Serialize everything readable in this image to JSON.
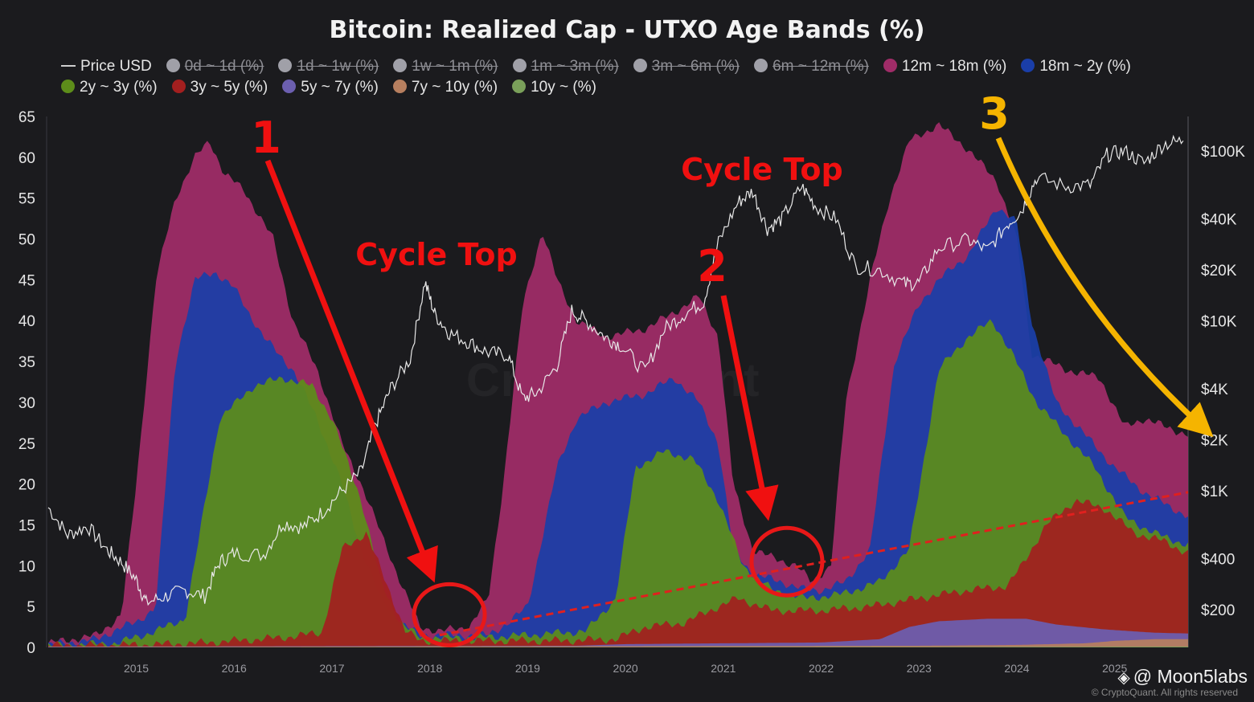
{
  "chart_data": {
    "type": "area",
    "title": "Bitcoin: Realized Cap - UTXO Age Bands (%)",
    "y_left": {
      "ticks": [
        0,
        5,
        10,
        15,
        20,
        25,
        30,
        35,
        40,
        45,
        50,
        55,
        60,
        65
      ],
      "range": [
        0,
        65
      ]
    },
    "y_right": {
      "scale": "log",
      "ticks": [
        200,
        400,
        1000,
        2000,
        4000,
        10000,
        20000,
        40000,
        100000
      ],
      "tick_labels": [
        "$200",
        "$400",
        "$1K",
        "$2K",
        "$4K",
        "$10K",
        "$20K",
        "$40K",
        "$100K"
      ]
    },
    "x": {
      "range": [
        2014.1,
        2025.75
      ],
      "ticks": [
        2015,
        2016,
        2017,
        2018,
        2019,
        2020,
        2021,
        2022,
        2023,
        2024,
        2025
      ]
    },
    "legend": [
      {
        "name": "Price USD",
        "kind": "line",
        "color": "#cfcfcf",
        "hidden": false
      },
      {
        "name": "0d ~ 1d (%)",
        "color": "#a0a0a8",
        "hidden": true
      },
      {
        "name": "1d ~ 1w (%)",
        "color": "#a0a0a8",
        "hidden": true
      },
      {
        "name": "1w ~ 1m (%)",
        "color": "#a0a0a8",
        "hidden": true
      },
      {
        "name": "1m ~ 3m (%)",
        "color": "#a0a0a8",
        "hidden": true
      },
      {
        "name": "3m ~ 6m (%)",
        "color": "#a0a0a8",
        "hidden": true
      },
      {
        "name": "6m ~ 12m (%)",
        "color": "#a0a0a8",
        "hidden": true
      },
      {
        "name": "12m ~ 18m (%)",
        "color": "#a02c68",
        "hidden": false
      },
      {
        "name": "18m ~ 2y (%)",
        "color": "#1a3ea8",
        "hidden": false
      },
      {
        "name": "2y ~ 3y (%)",
        "color": "#5d8d1a",
        "hidden": false
      },
      {
        "name": "3y ~ 5y (%)",
        "color": "#a31f1f",
        "hidden": false
      },
      {
        "name": "5y ~ 7y (%)",
        "color": "#6c5fb0",
        "hidden": false
      },
      {
        "name": "7y ~ 10y (%)",
        "color": "#b77f5f",
        "hidden": false
      },
      {
        "name": "10y ~ (%)",
        "color": "#7aa05a",
        "hidden": false
      }
    ],
    "stack_totals": [
      {
        "name": "12m ~ 18m (%)",
        "color": "#a02c68",
        "points": [
          [
            2014.1,
            0.5
          ],
          [
            2014.6,
            1.5
          ],
          [
            2014.85,
            4
          ],
          [
            2015.0,
            20
          ],
          [
            2015.2,
            45
          ],
          [
            2015.4,
            55
          ],
          [
            2015.6,
            60
          ],
          [
            2015.75,
            62
          ],
          [
            2015.9,
            58
          ],
          [
            2016.1,
            56
          ],
          [
            2016.4,
            50
          ],
          [
            2016.6,
            40
          ],
          [
            2016.85,
            34
          ],
          [
            2017.1,
            25
          ],
          [
            2017.3,
            20
          ],
          [
            2017.5,
            14
          ],
          [
            2017.7,
            8
          ],
          [
            2017.9,
            2.5
          ],
          [
            2018.1,
            2
          ],
          [
            2018.4,
            2.5
          ],
          [
            2018.6,
            6
          ],
          [
            2018.75,
            20
          ],
          [
            2018.95,
            42
          ],
          [
            2019.15,
            51
          ],
          [
            2019.3,
            45
          ],
          [
            2019.5,
            40
          ],
          [
            2019.8,
            38
          ],
          [
            2020.2,
            39
          ],
          [
            2020.5,
            41
          ],
          [
            2020.75,
            43
          ],
          [
            2020.95,
            38
          ],
          [
            2021.1,
            20
          ],
          [
            2021.3,
            12
          ],
          [
            2021.5,
            11
          ],
          [
            2021.75,
            10
          ],
          [
            2021.9,
            8
          ],
          [
            2022.1,
            10
          ],
          [
            2022.25,
            30
          ],
          [
            2022.5,
            45
          ],
          [
            2022.7,
            55
          ],
          [
            2022.9,
            62
          ],
          [
            2023.2,
            64
          ],
          [
            2023.5,
            61
          ],
          [
            2023.8,
            57
          ],
          [
            2024.0,
            50
          ],
          [
            2024.15,
            36
          ],
          [
            2024.5,
            34
          ],
          [
            2024.85,
            33
          ],
          [
            2025.1,
            27
          ],
          [
            2025.3,
            28
          ],
          [
            2025.75,
            26
          ]
        ]
      },
      {
        "name": "18m ~ 2y (%)",
        "color": "#1a3ea8",
        "points": [
          [
            2014.1,
            0.3
          ],
          [
            2014.6,
            1
          ],
          [
            2014.85,
            2.5
          ],
          [
            2015.0,
            3
          ],
          [
            2015.2,
            5
          ],
          [
            2015.4,
            35
          ],
          [
            2015.6,
            45
          ],
          [
            2015.8,
            46
          ],
          [
            2016.0,
            44
          ],
          [
            2016.3,
            38
          ],
          [
            2016.6,
            34
          ],
          [
            2016.85,
            28
          ],
          [
            2017.1,
            20
          ],
          [
            2017.3,
            12
          ],
          [
            2017.5,
            6
          ],
          [
            2017.7,
            3
          ],
          [
            2017.9,
            1.5
          ],
          [
            2018.1,
            1.5
          ],
          [
            2018.6,
            1.5
          ],
          [
            2018.8,
            3
          ],
          [
            2019.0,
            5
          ],
          [
            2019.3,
            22
          ],
          [
            2019.5,
            28
          ],
          [
            2019.8,
            30
          ],
          [
            2020.2,
            31
          ],
          [
            2020.5,
            33
          ],
          [
            2020.75,
            30
          ],
          [
            2020.95,
            25
          ],
          [
            2021.1,
            12
          ],
          [
            2021.3,
            9
          ],
          [
            2021.6,
            8
          ],
          [
            2021.85,
            7
          ],
          [
            2022.0,
            7
          ],
          [
            2022.25,
            8
          ],
          [
            2022.5,
            12
          ],
          [
            2022.75,
            35
          ],
          [
            2023.0,
            42
          ],
          [
            2023.2,
            45
          ],
          [
            2023.5,
            48
          ],
          [
            2023.8,
            54
          ],
          [
            2024.0,
            52
          ],
          [
            2024.15,
            40
          ],
          [
            2024.4,
            30
          ],
          [
            2024.7,
            26
          ],
          [
            2025.0,
            22
          ],
          [
            2025.3,
            19
          ],
          [
            2025.75,
            16
          ]
        ]
      },
      {
        "name": "2y ~ 3y (%)",
        "color": "#5d8d1a",
        "points": [
          [
            2014.1,
            0.2
          ],
          [
            2014.8,
            0.5
          ],
          [
            2015.2,
            2
          ],
          [
            2015.5,
            3.5
          ],
          [
            2015.85,
            28
          ],
          [
            2016.2,
            32
          ],
          [
            2016.5,
            33
          ],
          [
            2016.8,
            32
          ],
          [
            2017.0,
            28
          ],
          [
            2017.3,
            18
          ],
          [
            2017.5,
            8
          ],
          [
            2017.7,
            3
          ],
          [
            2017.9,
            1.2
          ],
          [
            2018.5,
            1.2
          ],
          [
            2019.0,
            1.5
          ],
          [
            2019.6,
            2
          ],
          [
            2019.9,
            6
          ],
          [
            2020.1,
            22
          ],
          [
            2020.4,
            24
          ],
          [
            2020.7,
            23
          ],
          [
            2020.95,
            18
          ],
          [
            2021.2,
            10
          ],
          [
            2021.5,
            7
          ],
          [
            2021.85,
            6
          ],
          [
            2022.2,
            6.5
          ],
          [
            2022.6,
            8
          ],
          [
            2022.9,
            12
          ],
          [
            2023.2,
            34
          ],
          [
            2023.5,
            38
          ],
          [
            2023.75,
            40
          ],
          [
            2023.95,
            36
          ],
          [
            2024.2,
            30
          ],
          [
            2024.5,
            26
          ],
          [
            2024.8,
            22
          ],
          [
            2025.1,
            16
          ],
          [
            2025.4,
            14
          ],
          [
            2025.75,
            12.5
          ]
        ]
      },
      {
        "name": "3y ~ 5y (%)",
        "color": "#a31f1f",
        "points": [
          [
            2014.1,
            0.2
          ],
          [
            2015.0,
            0.3
          ],
          [
            2015.6,
            0.5
          ],
          [
            2016.0,
            0.8
          ],
          [
            2016.5,
            1.2
          ],
          [
            2016.9,
            1.8
          ],
          [
            2017.1,
            12
          ],
          [
            2017.35,
            14
          ],
          [
            2017.55,
            8
          ],
          [
            2017.75,
            2
          ],
          [
            2017.9,
            0.8
          ],
          [
            2018.5,
            0.8
          ],
          [
            2019.3,
            0.8
          ],
          [
            2019.9,
            1
          ],
          [
            2020.2,
            2.5
          ],
          [
            2020.6,
            3
          ],
          [
            2020.95,
            5
          ],
          [
            2021.15,
            6
          ],
          [
            2021.5,
            4.5
          ],
          [
            2022.0,
            4.5
          ],
          [
            2022.5,
            5
          ],
          [
            2023.0,
            6
          ],
          [
            2023.5,
            7
          ],
          [
            2023.9,
            7.5
          ],
          [
            2024.05,
            10
          ],
          [
            2024.3,
            15
          ],
          [
            2024.6,
            18
          ],
          [
            2024.9,
            17
          ],
          [
            2025.2,
            14
          ],
          [
            2025.5,
            13
          ],
          [
            2025.75,
            11.5
          ]
        ]
      },
      {
        "name": "5y ~ 7y (%)",
        "color": "#6c5fb0",
        "points": [
          [
            2014.1,
            0.1
          ],
          [
            2019.5,
            0.2
          ],
          [
            2020.0,
            0.4
          ],
          [
            2021.0,
            0.5
          ],
          [
            2022.0,
            0.6
          ],
          [
            2022.6,
            1
          ],
          [
            2022.9,
            2.5
          ],
          [
            2023.2,
            3.2
          ],
          [
            2023.7,
            3.5
          ],
          [
            2024.1,
            3.5
          ],
          [
            2024.4,
            2.8
          ],
          [
            2024.9,
            2.2
          ],
          [
            2025.4,
            1.8
          ],
          [
            2025.75,
            1.7
          ]
        ]
      },
      {
        "name": "7y ~ 10y (%)",
        "color": "#b77f5f",
        "points": [
          [
            2014.1,
            0.05
          ],
          [
            2023.0,
            0.2
          ],
          [
            2024.0,
            0.3
          ],
          [
            2024.7,
            0.5
          ],
          [
            2025.0,
            0.8
          ],
          [
            2025.4,
            1
          ],
          [
            2025.75,
            1
          ]
        ]
      },
      {
        "name": "10y ~ (%)",
        "color": "#7aa05a",
        "points": [
          [
            2014.1,
            0
          ],
          [
            2023.0,
            0.05
          ],
          [
            2025.75,
            0.1
          ]
        ]
      }
    ],
    "price_usd": [
      [
        2014.1,
        800
      ],
      [
        2014.3,
        550
      ],
      [
        2014.5,
        620
      ],
      [
        2014.7,
        450
      ],
      [
        2014.85,
        380
      ],
      [
        2015.0,
        300
      ],
      [
        2015.1,
        220
      ],
      [
        2015.3,
        240
      ],
      [
        2015.5,
        260
      ],
      [
        2015.7,
        240
      ],
      [
        2015.85,
        380
      ],
      [
        2016.0,
        430
      ],
      [
        2016.3,
        420
      ],
      [
        2016.5,
        650
      ],
      [
        2016.7,
        610
      ],
      [
        2016.9,
        750
      ],
      [
        2017.1,
        1000
      ],
      [
        2017.3,
        1300
      ],
      [
        2017.45,
        2500
      ],
      [
        2017.6,
        4000
      ],
      [
        2017.8,
        6000
      ],
      [
        2017.95,
        17000
      ],
      [
        2018.05,
        11000
      ],
      [
        2018.2,
        8500
      ],
      [
        2018.4,
        7500
      ],
      [
        2018.6,
        6500
      ],
      [
        2018.8,
        6300
      ],
      [
        2018.95,
        3500
      ],
      [
        2019.1,
        3800
      ],
      [
        2019.3,
        5500
      ],
      [
        2019.45,
        11500
      ],
      [
        2019.6,
        10000
      ],
      [
        2019.8,
        8000
      ],
      [
        2019.95,
        7200
      ],
      [
        2020.2,
        5000
      ],
      [
        2020.4,
        9000
      ],
      [
        2020.6,
        11000
      ],
      [
        2020.8,
        13000
      ],
      [
        2020.95,
        29000
      ],
      [
        2021.15,
        50000
      ],
      [
        2021.3,
        58000
      ],
      [
        2021.45,
        35000
      ],
      [
        2021.6,
        40000
      ],
      [
        2021.8,
        62000
      ],
      [
        2021.95,
        47000
      ],
      [
        2022.15,
        40000
      ],
      [
        2022.35,
        21000
      ],
      [
        2022.6,
        20000
      ],
      [
        2022.85,
        16500
      ],
      [
        2023.0,
        16800
      ],
      [
        2023.2,
        27000
      ],
      [
        2023.5,
        30000
      ],
      [
        2023.7,
        26000
      ],
      [
        2023.9,
        37000
      ],
      [
        2024.05,
        45000
      ],
      [
        2024.2,
        70000
      ],
      [
        2024.5,
        62000
      ],
      [
        2024.75,
        63000
      ],
      [
        2024.92,
        95000
      ],
      [
        2025.1,
        100000
      ],
      [
        2025.3,
        85000
      ],
      [
        2025.5,
        110000
      ],
      [
        2025.7,
        115000
      ]
    ],
    "annotations": {
      "cycle_top_1": "Cycle Top",
      "cycle_top_2": "Cycle Top",
      "marker_1": "1",
      "marker_2": "2",
      "marker_3": "3",
      "trend_line": {
        "from": [
          2018.1,
          1.5
        ],
        "to": [
          2025.75,
          19
        ]
      }
    }
  },
  "watermark": "CryptoQuant",
  "credit": "@ Moon5labs",
  "credit_icon": "binance-diamond-icon",
  "copyright": "© CryptoQuant. All rights reserved"
}
